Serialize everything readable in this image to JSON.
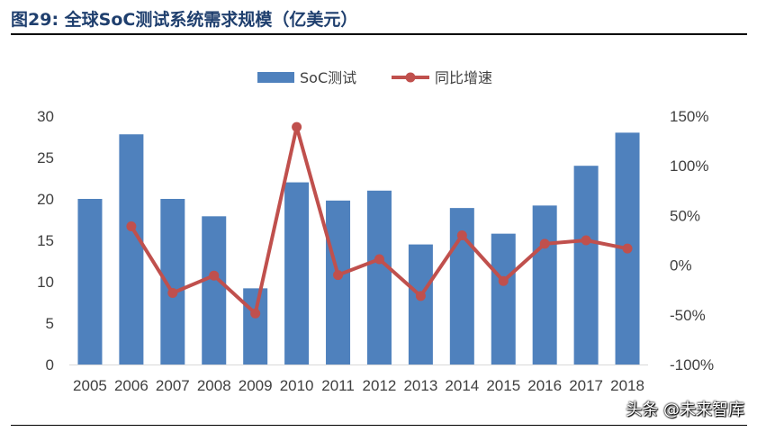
{
  "header": {
    "title": "图29:  全球SoC测试系统需求规模（亿美元）"
  },
  "watermark": "头条 @未来智库",
  "chart_data": {
    "type": "bar",
    "title": "全球SoC测试系统需求规模（亿美元）",
    "categories": [
      "2005",
      "2006",
      "2007",
      "2008",
      "2009",
      "2010",
      "2011",
      "2012",
      "2013",
      "2014",
      "2015",
      "2016",
      "2017",
      "2018"
    ],
    "series": [
      {
        "name": "SoC测试",
        "type": "bar",
        "axis": "left",
        "color": "#4f81bd",
        "values": [
          20,
          27.8,
          20,
          17.9,
          9.2,
          22,
          19.8,
          21,
          14.5,
          18.9,
          15.8,
          19.2,
          24,
          28
        ]
      },
      {
        "name": "同比增速",
        "type": "line",
        "axis": "right",
        "color": "#c0504d",
        "values": [
          null,
          39,
          -28,
          -10.5,
          -48.6,
          139,
          -10,
          6,
          -31,
          30,
          -16,
          21.5,
          25,
          16.7
        ]
      }
    ],
    "y_left": {
      "ylim": [
        0,
        30
      ],
      "ticks": [
        0,
        5,
        10,
        15,
        20,
        25,
        30
      ],
      "tick_labels": [
        "0",
        "5",
        "10",
        "15",
        "20",
        "25",
        "30"
      ]
    },
    "y_right": {
      "ylim": [
        -100,
        150
      ],
      "ticks": [
        -100,
        -50,
        0,
        50,
        100,
        150
      ],
      "tick_labels": [
        "-100%",
        "-50%",
        "0%",
        "50%",
        "100%",
        "150%"
      ]
    },
    "legend": {
      "placement": "top-center",
      "entries": [
        "SoC测试",
        "同比增速"
      ]
    },
    "grid": false
  }
}
